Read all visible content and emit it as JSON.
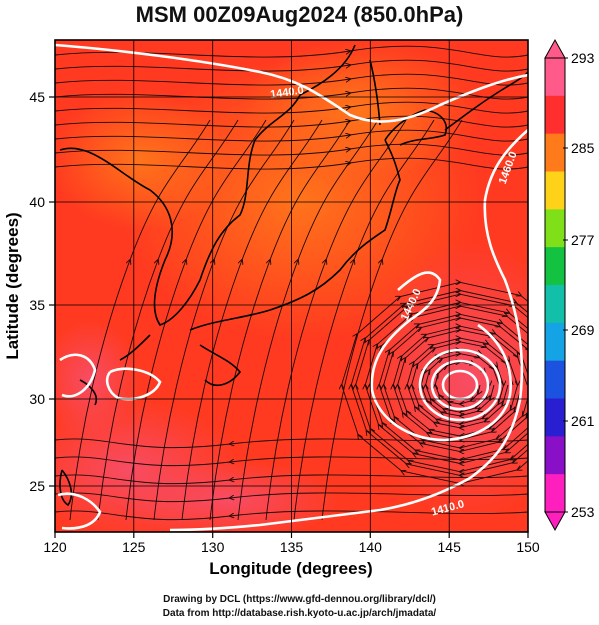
{
  "title": "MSM 00Z09Aug2024 (850.0hPa)",
  "axes": {
    "xlabel": "Longitude (degrees)",
    "ylabel": "Latitude  (degrees)",
    "x_ticks": [
      "120",
      "125",
      "130",
      "135",
      "140",
      "145",
      "150"
    ],
    "y_ticks": [
      "45",
      "40",
      "35",
      "30",
      "25"
    ]
  },
  "contour_labels": [
    "1440.0",
    "1460.0",
    "1440.0",
    "1410.0"
  ],
  "colorbar": {
    "labels": [
      "293",
      "285",
      "277",
      "269",
      "261",
      "253"
    ],
    "colors": [
      "#ff5a8a",
      "#ff2f2f",
      "#ff7a1a",
      "#ffd21a",
      "#7fe01a",
      "#12c240",
      "#12bfa8",
      "#14a4e6",
      "#1c52e0",
      "#2a1fd0",
      "#8a10c8",
      "#ff1fbf"
    ]
  },
  "map_colors": {
    "field_base": "#ff3a20",
    "field_warm": "#ff6a1a",
    "field_cool": "#f64a4a",
    "contour": "#ffffff",
    "streamline": "#1a0a0a",
    "coast": "#000000"
  },
  "footer": {
    "line1": "Drawing by DCL (https://www.gfd-dennou.org/library/dcl/)",
    "line2": "Data from http://database.rish.kyoto-u.ac.jp/arch/jmadata/"
  }
}
